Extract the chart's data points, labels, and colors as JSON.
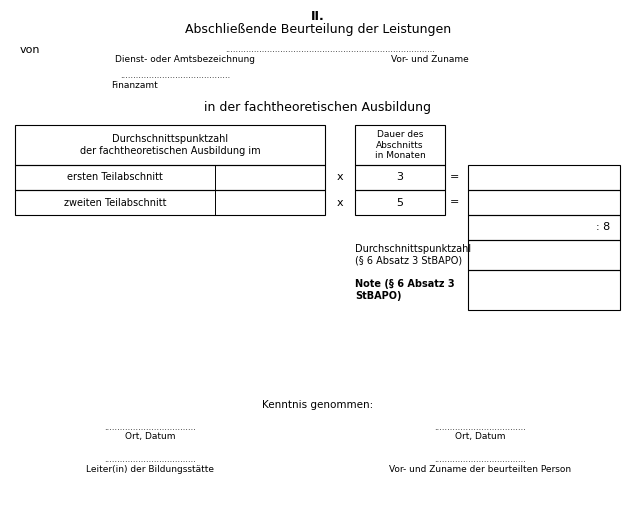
{
  "title_roman": "II.",
  "title_main": "Abschließende Beurteilung der Leistungen",
  "von_label": "von",
  "line1_label": "Dienst- oder Amtsbezeichnung",
  "line1_label2": "Vor- und Zuname",
  "line2_label": "Finanzamt",
  "subtitle": "in der fachtheoretischen Ausbildung",
  "col_header1": "Durchschnittspunktzahl\nder fachtheoretischen Ausbildung im",
  "col_header2": "Dauer des\nAbschnitts\nin Monaten",
  "row1_label": "ersten Teilabschnitt",
  "row2_label": "zweiten Teilabschnitt",
  "row1_val": "3",
  "row2_val": "5",
  "div_label": ": 8",
  "side_label1": "Durchschnittspunktzahl\n(§ 6 Absatz 3 StBAPO)",
  "side_label2": "Note (§ 6 Absatz 3\nStBAPO)",
  "kenntnis": "Kenntnis genommen:",
  "ort_datum": "Ort, Datum",
  "leiter_label": "Leiter(in) der Bildungsstätte",
  "vorname_label": "Vor- und Zuname der beurteilten Person",
  "bg_color": "#ffffff",
  "text_color": "#000000"
}
